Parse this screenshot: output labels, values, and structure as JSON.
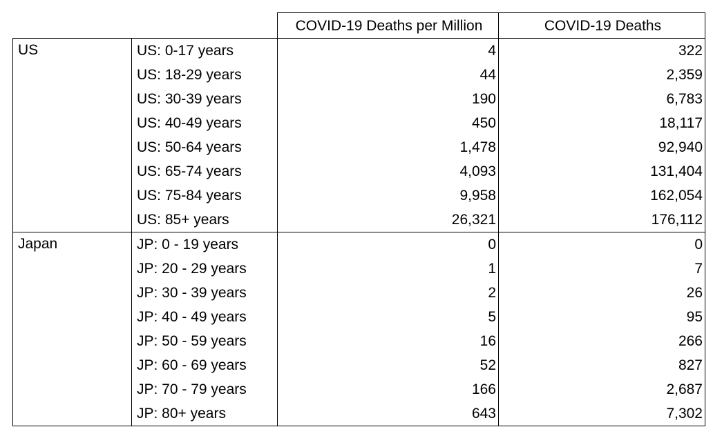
{
  "headers": {
    "country": "",
    "age_group": "",
    "deaths_per_million": "COVID-19 Deaths per Million",
    "deaths": "COVID-19 Deaths"
  },
  "groups": [
    {
      "country": "US",
      "rows": [
        {
          "age": "US: 0-17 years",
          "per_million": "4",
          "deaths": "322"
        },
        {
          "age": "US: 18-29 years",
          "per_million": "44",
          "deaths": "2,359"
        },
        {
          "age": "US: 30-39 years",
          "per_million": "190",
          "deaths": "6,783"
        },
        {
          "age": "US: 40-49 years",
          "per_million": "450",
          "deaths": "18,117"
        },
        {
          "age": "US: 50-64 years",
          "per_million": "1,478",
          "deaths": "92,940"
        },
        {
          "age": "US: 65-74 years",
          "per_million": "4,093",
          "deaths": "131,404"
        },
        {
          "age": "US: 75-84 years",
          "per_million": "9,958",
          "deaths": "162,054"
        },
        {
          "age": "US: 85+ years",
          "per_million": "26,321",
          "deaths": "176,112"
        }
      ]
    },
    {
      "country": "Japan",
      "rows": [
        {
          "age": "JP: 0 - 19 years",
          "per_million": "0",
          "deaths": "0"
        },
        {
          "age": "JP: 20 - 29 years",
          "per_million": "1",
          "deaths": "7"
        },
        {
          "age": "JP: 30 - 39 years",
          "per_million": "2",
          "deaths": "26"
        },
        {
          "age": "JP: 40 - 49 years",
          "per_million": "5",
          "deaths": "95"
        },
        {
          "age": "JP: 50 - 59 years",
          "per_million": "16",
          "deaths": "266"
        },
        {
          "age": "JP: 60 - 69 years",
          "per_million": "52",
          "deaths": "827"
        },
        {
          "age": "JP: 70 - 79 years",
          "per_million": "166",
          "deaths": "2,687"
        },
        {
          "age": "JP: 80+ years",
          "per_million": "643",
          "deaths": "7,302"
        }
      ]
    }
  ]
}
